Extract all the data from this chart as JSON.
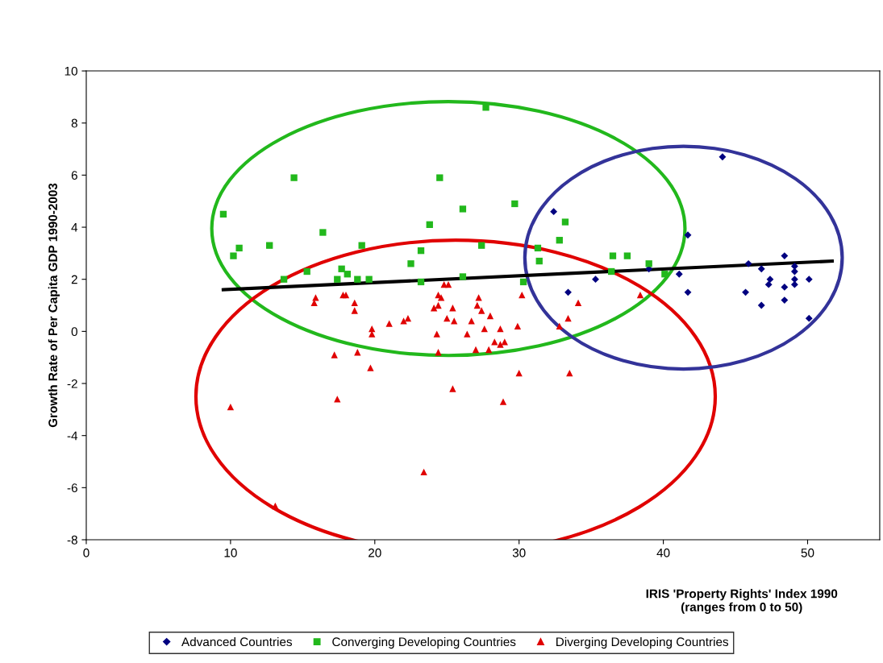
{
  "chart_data": {
    "type": "scatter",
    "xlabel": "IRIS 'Property Rights' Index 1990\n(ranges from 0 to 50)",
    "ylabel": "Growth Rate of Per Capita GDP 1990-2003",
    "xlim": [
      0,
      55
    ],
    "xticks": [
      0,
      10,
      20,
      30,
      40,
      50
    ],
    "ylim": [
      -8,
      10
    ],
    "yticks": [
      -8,
      -6,
      -4,
      -2,
      0,
      2,
      4,
      6,
      8,
      10
    ],
    "grid": false,
    "legend": "bottom",
    "series": [
      {
        "name": "Advanced Countries",
        "color": "#000080",
        "marker": "diamond",
        "x": [
          44.1,
          32.4,
          41.7,
          48.4,
          45.9,
          46.8,
          49.1,
          49.1,
          49.1,
          49.1,
          47.4,
          47.3,
          50.1,
          48.4,
          45.7,
          48.4,
          46.8,
          50.1,
          41.1,
          41.7,
          39.0,
          35.3,
          33.4
        ],
        "values": [
          6.7,
          4.6,
          3.7,
          2.9,
          2.6,
          2.4,
          2.5,
          2.3,
          2.0,
          1.8,
          2.0,
          1.8,
          2.0,
          1.7,
          1.5,
          1.2,
          1.0,
          0.5,
          2.2,
          1.5,
          2.4,
          2.0,
          1.5
        ]
      },
      {
        "name": "Converging Developing Countries",
        "color": "#22b81c",
        "marker": "square",
        "x": [
          14.4,
          9.5,
          16.4,
          10.6,
          10.2,
          12.7,
          19.1,
          23.8,
          23.2,
          22.5,
          17.7,
          18.1,
          15.3,
          13.7,
          17.4,
          18.8,
          19.6,
          23.2,
          27.7,
          24.5,
          26.1,
          29.7,
          33.2,
          32.8,
          31.3,
          31.4,
          27.4,
          26.1,
          30.3,
          36.5,
          37.5,
          39.0,
          36.4,
          40.1
        ],
        "values": [
          5.9,
          4.5,
          3.8,
          3.2,
          2.9,
          3.3,
          3.3,
          4.1,
          3.1,
          2.6,
          2.4,
          2.2,
          2.3,
          2.0,
          2.0,
          2.0,
          2.0,
          1.9,
          8.6,
          5.9,
          4.7,
          4.9,
          4.2,
          3.5,
          3.2,
          2.7,
          3.3,
          2.1,
          1.9,
          2.9,
          2.9,
          2.6,
          2.3,
          2.2
        ]
      },
      {
        "name": "Diverging Developing Countries",
        "color": "#e00000",
        "marker": "triangle",
        "x": [
          15.9,
          15.8,
          18.0,
          17.8,
          18.6,
          18.6,
          21.0,
          22.0,
          22.3,
          19.8,
          19.8,
          17.2,
          18.8,
          19.7,
          17.4,
          10.0,
          24.8,
          25.1,
          24.4,
          24.6,
          27.2,
          30.2,
          24.4,
          24.1,
          25.4,
          27.1,
          27.4,
          28.0,
          25.0,
          25.5,
          26.7,
          24.3,
          26.4,
          27.6,
          28.7,
          29.9,
          28.3,
          29.0,
          28.7,
          27.0,
          27.9,
          24.4,
          25.4,
          28.9,
          30.0,
          33.5,
          34.1,
          33.4,
          32.8,
          38.4,
          23.4,
          13.1
        ],
        "values": [
          1.3,
          1.1,
          1.4,
          1.4,
          1.1,
          0.8,
          0.3,
          0.4,
          0.5,
          0.1,
          -0.1,
          -0.9,
          -0.8,
          -1.4,
          -2.6,
          -2.9,
          1.8,
          1.8,
          1.4,
          1.3,
          1.3,
          1.4,
          1.0,
          0.9,
          0.9,
          1.0,
          0.8,
          0.6,
          0.5,
          0.4,
          0.4,
          -0.1,
          -0.1,
          0.1,
          0.1,
          0.2,
          -0.4,
          -0.4,
          -0.5,
          -0.7,
          -0.7,
          -0.8,
          -2.2,
          -2.7,
          -1.6,
          -1.6,
          1.1,
          0.5,
          0.2,
          1.4,
          -5.4,
          -6.7
        ]
      },
      {
        "type": "line",
        "color": "#000000",
        "marker": "none",
        "x": [
          9.5,
          51.7
        ],
        "values": [
          1.6,
          2.7
        ]
      }
    ]
  }
}
